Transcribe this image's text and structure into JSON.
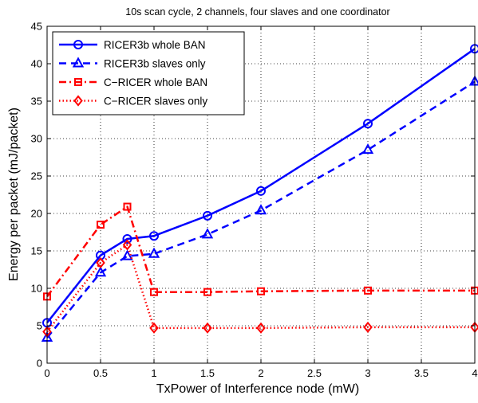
{
  "chart_data": {
    "type": "line",
    "title": "10s scan cycle, 2 channels, four slaves and one coordinator",
    "xlabel": "TxPower of Interference node (mW)",
    "ylabel": "Energy per packet (mJ/packet)",
    "xlim": [
      0,
      4
    ],
    "ylim": [
      0,
      45
    ],
    "xticks": [
      0,
      0.5,
      1,
      1.5,
      2,
      2.5,
      3,
      3.5,
      4
    ],
    "yticks": [
      0,
      5,
      10,
      15,
      20,
      25,
      30,
      35,
      40,
      45
    ],
    "grid": true,
    "legend_position": "top-left",
    "series": [
      {
        "name": "RICER3b whole BAN",
        "color": "#0000ff",
        "line_style": "solid",
        "marker": "circle",
        "x": [
          0,
          0.5,
          0.75,
          1,
          1.5,
          2,
          3,
          4
        ],
        "y": [
          5.4,
          14.4,
          16.6,
          17.0,
          19.7,
          23.0,
          32.0,
          42.0
        ]
      },
      {
        "name": "RICER3b slaves only",
        "color": "#0000ff",
        "line_style": "dashed",
        "marker": "triangle",
        "x": [
          0,
          0.5,
          0.75,
          1,
          1.5,
          2,
          3,
          4
        ],
        "y": [
          3.4,
          12.1,
          14.3,
          14.6,
          17.2,
          20.4,
          28.5,
          37.6
        ]
      },
      {
        "name": "C−RICER whole BAN",
        "color": "#ff0000",
        "line_style": "dashdot",
        "marker": "square",
        "x": [
          0,
          0.5,
          0.75,
          1,
          1.5,
          2,
          3,
          4
        ],
        "y": [
          8.9,
          18.5,
          20.9,
          9.5,
          9.5,
          9.6,
          9.7,
          9.7
        ]
      },
      {
        "name": "C−RICER slaves only",
        "color": "#ff0000",
        "line_style": "dotted",
        "marker": "diamond",
        "x": [
          0,
          0.5,
          0.75,
          1,
          1.5,
          2,
          3,
          4
        ],
        "y": [
          4.2,
          13.4,
          15.8,
          4.7,
          4.7,
          4.7,
          4.8,
          4.8
        ]
      }
    ]
  }
}
